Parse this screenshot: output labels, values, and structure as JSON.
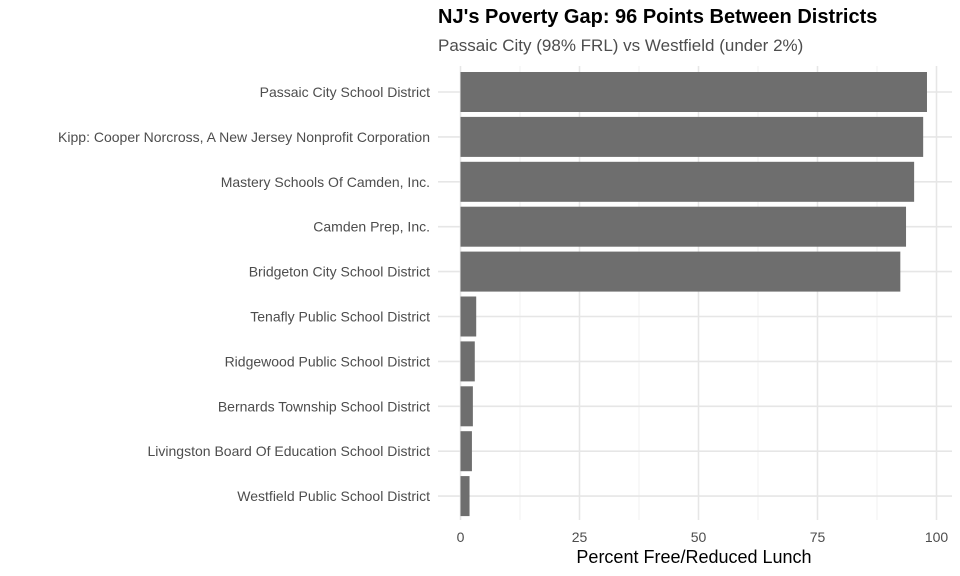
{
  "chart_data": {
    "type": "bar",
    "orientation": "horizontal",
    "title": "NJ's Poverty Gap: 96 Points Between Districts",
    "subtitle": "Passaic City (98% FRL) vs Westfield (under 2%)",
    "xlabel": "Percent Free/Reduced Lunch",
    "ylabel": "",
    "xlim": [
      0,
      103
    ],
    "xticks": [
      0,
      25,
      50,
      75,
      100
    ],
    "grid": true,
    "bar_color": "#6e6e6e",
    "categories": [
      "Passaic City School District",
      "Kipp: Cooper Norcross, A New Jersey Nonprofit Corporation",
      "Mastery Schools Of Camden, Inc.",
      "Camden Prep, Inc.",
      "Bridgeton City School District",
      "Tenafly Public School District",
      "Ridgewood Public School District",
      "Bernards Township School District",
      "Livingston Board Of Education School District",
      "Westfield Public School District"
    ],
    "values": [
      98.0,
      97.2,
      95.3,
      93.6,
      92.4,
      3.3,
      3.0,
      2.6,
      2.4,
      1.9
    ]
  }
}
